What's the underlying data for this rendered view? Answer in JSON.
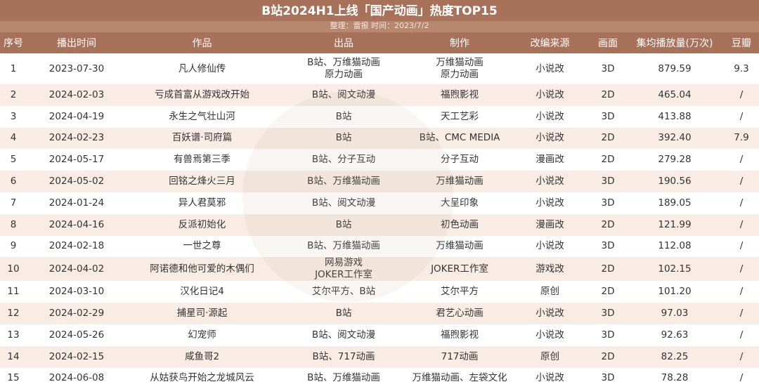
{
  "header": {
    "title": "B站2024H1上线「国产动画」热度TOP15",
    "subtitle": "整理：雷报   时间：2023/7/2"
  },
  "table": {
    "columns": [
      "序号",
      "播出时间",
      "作品",
      "出品",
      "制作",
      "改编来源",
      "画面",
      "集均播放量(万次)",
      "豆瓣"
    ],
    "rows": [
      [
        "1",
        "2023-07-30",
        "凡人修仙传",
        "B站、万维猫动画\n原力动画",
        "万维猫动画\n原力动画",
        "小说改",
        "3D",
        "879.59",
        "9.3"
      ],
      [
        "2",
        "2024-02-03",
        "亏成首富从游戏改开始",
        "B站、阅文动漫",
        "福煦影视",
        "小说改",
        "2D",
        "465.04",
        "/"
      ],
      [
        "3",
        "2024-04-19",
        "永生之气壮山河",
        "B站",
        "天工艺彩",
        "小说改",
        "3D",
        "413.88",
        "/"
      ],
      [
        "4",
        "2024-02-23",
        "百妖谱·司府篇",
        "B站",
        "B站、CMC MEDIA",
        "小说改",
        "2D",
        "392.40",
        "7.9"
      ],
      [
        "5",
        "2024-05-17",
        "有兽焉第三季",
        "B站、分子互动",
        "分子互动",
        "漫画改",
        "2D",
        "279.28",
        "/"
      ],
      [
        "6",
        "2024-05-02",
        "回铭之烽火三月",
        "B站、万维猫动画",
        "万维猫动画",
        "小说改",
        "3D",
        "190.56",
        "/"
      ],
      [
        "7",
        "2024-01-24",
        "异人君莫邪",
        "B站、阅文动漫",
        "大呈印象",
        "小说改",
        "3D",
        "189.05",
        "/"
      ],
      [
        "8",
        "2024-04-16",
        "反派初始化",
        "B站",
        "初色动画",
        "漫画改",
        "2D",
        "121.99",
        "/"
      ],
      [
        "9",
        "2024-02-18",
        "一世之尊",
        "B站、万维猫动画",
        "万维猫动画",
        "小说改",
        "3D",
        "112.08",
        "/"
      ],
      [
        "10",
        "2024-04-02",
        "阿诺德和他可爱的木偶们",
        "网易游戏\nJOKER工作室",
        "JOKER工作室",
        "游戏改",
        "2D",
        "102.15",
        "/"
      ],
      [
        "11",
        "2024-03-10",
        "汉化日记4",
        "艾尔平方、B站",
        "艾尔平方",
        "原创",
        "2D",
        "101.20",
        "/"
      ],
      [
        "12",
        "2024-02-29",
        "捕星司·源起",
        "B站",
        "君艺心动画",
        "小说改",
        "3D",
        "97.03",
        "/"
      ],
      [
        "13",
        "2024-05-26",
        "幻宠师",
        "B站、阅文动漫",
        "福煦影视",
        "小说改",
        "3D",
        "92.63",
        "/"
      ],
      [
        "14",
        "2024-02-15",
        "咸鱼哥2",
        "B站、717动画",
        "717动画",
        "原创",
        "2D",
        "82.25",
        "/"
      ],
      [
        "15",
        "2024-06-08",
        "从姑获鸟开始之龙城风云",
        "B站、万维猫动画",
        "万维猫动画、左袋文化",
        "小说改",
        "3D",
        "78.28",
        "/"
      ]
    ]
  }
}
